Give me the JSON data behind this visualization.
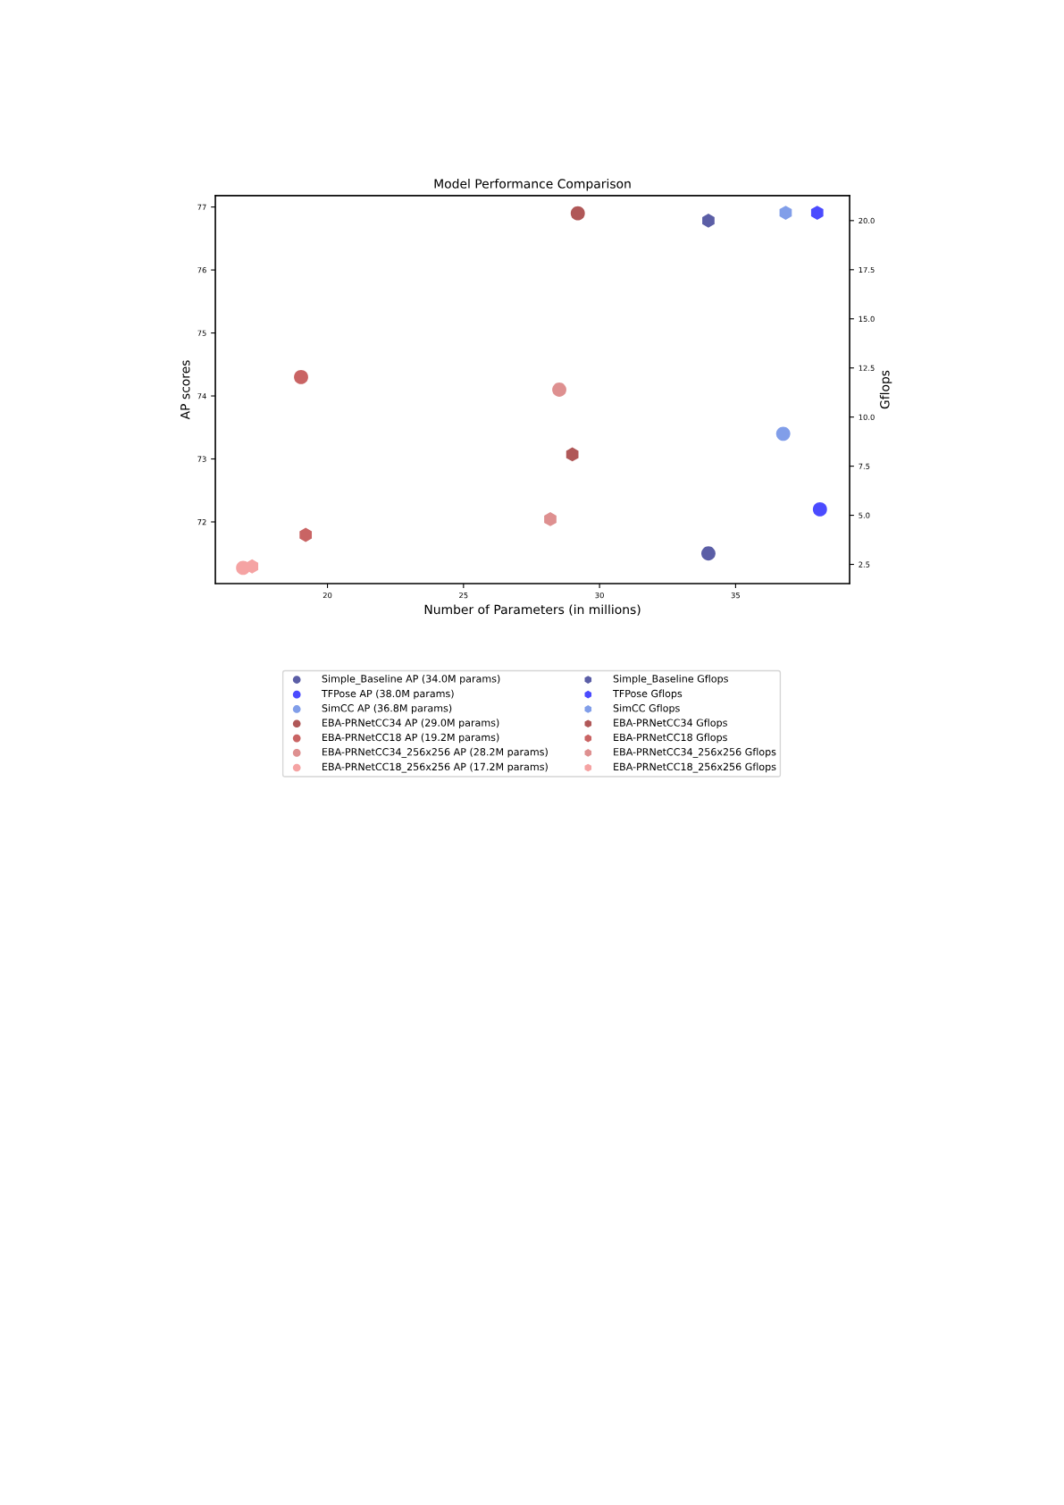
{
  "chart_data": {
    "type": "scatter",
    "title": "Model Performance Comparison",
    "xlabel": "Number of Parameters (in millions)",
    "ylabel": "AP scores",
    "y2label": "Gflops",
    "xlim": [
      15.88,
      39.19
    ],
    "xticks": [
      20,
      25,
      30,
      35
    ],
    "ylim": [
      71.02,
      77.18
    ],
    "yticks": [
      72,
      73,
      74,
      75,
      76,
      77
    ],
    "y2lim": [
      1.52,
      21.27
    ],
    "y2ticks": [
      {
        "value": 2.5,
        "label": "2.5"
      },
      {
        "value": 5.0,
        "label": "5.0"
      },
      {
        "value": 7.5,
        "label": "7.5"
      },
      {
        "value": 10.0,
        "label": "10.0"
      },
      {
        "value": 12.5,
        "label": "12.5"
      },
      {
        "value": 15.0,
        "label": "15.0"
      },
      {
        "value": 17.5,
        "label": "17.5"
      },
      {
        "value": 20.0,
        "label": "20.0"
      }
    ],
    "grid": false,
    "legend": "bottom",
    "series": [
      {
        "name": "Simple_Baseline AP (34.0M params)",
        "color": "#5b5ea6",
        "marker": "circle",
        "x": [
          34.0
        ],
        "values": [
          71.5
        ]
      },
      {
        "name": "TFPose AP (38.0M params)",
        "color": "#4b4bff",
        "marker": "circle",
        "x": [
          38.1
        ],
        "values": [
          72.2
        ]
      },
      {
        "name": "SimCC AP (36.8M params)",
        "color": "#819ee9",
        "marker": "circle",
        "x": [
          36.75
        ],
        "values": [
          73.4
        ]
      },
      {
        "name": "EBA-PRNetCC34 AP (29.0M params)",
        "color": "#b05858",
        "marker": "circle",
        "x": [
          29.2
        ],
        "values": [
          76.9
        ]
      },
      {
        "name": "EBA-PRNetCC18 AP (19.2M params)",
        "color": "#c96464",
        "marker": "circle",
        "x": [
          19.03
        ],
        "values": [
          74.3
        ]
      },
      {
        "name": "EBA-PRNetCC34_256x256 AP (28.2M params)",
        "color": "#de9090",
        "marker": "circle",
        "x": [
          28.52
        ],
        "values": [
          74.1
        ]
      },
      {
        "name": "EBA-PRNetCC18_256x256 AP (17.2M params)",
        "color": "#f5a3a3",
        "marker": "circle",
        "x": [
          16.9
        ],
        "values": [
          71.27
        ]
      },
      {
        "name": "Simple_Baseline Gflops",
        "color": "#5b5ea6",
        "axis": "y2",
        "x": [
          34.0
        ],
        "values": [
          20.0
        ]
      },
      {
        "name": "TFPose Gflops",
        "color": "#4b4bff",
        "axis": "y2",
        "x": [
          38.0
        ],
        "values": [
          20.4
        ]
      },
      {
        "name": "SimCC Gflops",
        "color": "#819ee9",
        "axis": "y2",
        "x": [
          36.84
        ],
        "values": [
          20.4
        ]
      },
      {
        "name": "EBA-PRNetCC34 Gflops",
        "color": "#b05858",
        "axis": "y2",
        "x": [
          29.0
        ],
        "values": [
          8.1
        ]
      },
      {
        "name": "EBA-PRNetCC18 Gflops",
        "color": "#c96464",
        "axis": "y2",
        "x": [
          19.2
        ],
        "values": [
          4.0
        ]
      },
      {
        "name": "EBA-PRNetCC34_256x256 Gflops",
        "color": "#de9090",
        "axis": "y2",
        "x": [
          28.19
        ],
        "values": [
          4.8
        ]
      },
      {
        "name": "EBA-PRNetCC18_256x256 Gflops",
        "color": "#f5a3a3",
        "axis": "y2",
        "x": [
          17.23
        ],
        "values": [
          2.4
        ]
      }
    ]
  }
}
